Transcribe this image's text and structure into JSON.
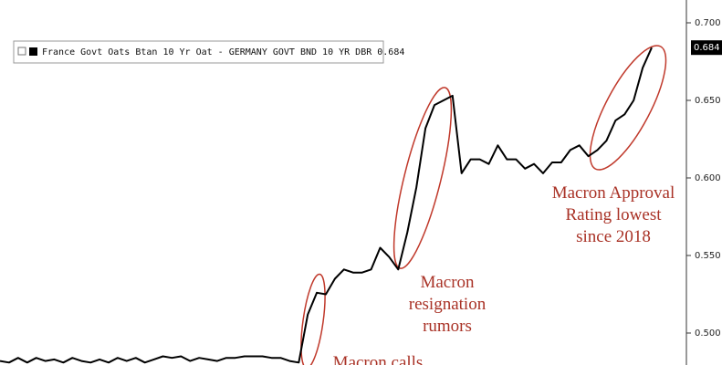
{
  "chart_data": {
    "type": "line",
    "series": [
      {
        "name": "France Govt Oats Btan 10 Yr Oat - GERMANY GOVT BND 10 YR DBR",
        "color": "#000000",
        "values": [
          0.482,
          0.481,
          0.484,
          0.481,
          0.484,
          0.482,
          0.483,
          0.481,
          0.484,
          0.482,
          0.481,
          0.483,
          0.481,
          0.484,
          0.482,
          0.484,
          0.481,
          0.483,
          0.485,
          0.484,
          0.485,
          0.482,
          0.484,
          0.483,
          0.482,
          0.484,
          0.484,
          0.485,
          0.485,
          0.485,
          0.484,
          0.484,
          0.482,
          0.481,
          0.512,
          0.526,
          0.525,
          0.535,
          0.541,
          0.539,
          0.539,
          0.541,
          0.555,
          0.549,
          0.541,
          0.565,
          0.594,
          0.632,
          0.647,
          0.65,
          0.653,
          0.603,
          0.612,
          0.612,
          0.609,
          0.621,
          0.612,
          0.612,
          0.606,
          0.609,
          0.603,
          0.61,
          0.61,
          0.618,
          0.621,
          0.614,
          0.618,
          0.624,
          0.637,
          0.641,
          0.65,
          0.671,
          0.684
        ]
      }
    ],
    "ylim": [
      0.4794,
      0.7147
    ],
    "yticks": [
      {
        "value": 0.5,
        "label": "0.500"
      },
      {
        "value": 0.55,
        "label": "0.550"
      },
      {
        "value": 0.6,
        "label": "0.600"
      },
      {
        "value": 0.65,
        "label": "0.650"
      },
      {
        "value": 0.7,
        "label": "0.700"
      }
    ],
    "grid": false,
    "annotations": [
      {
        "lines": [
          "Macron calls"
        ]
      },
      {
        "lines": [
          "Macron",
          "resignation",
          "rumors"
        ]
      },
      {
        "lines": [
          "Macron Approval",
          "Rating lowest",
          "since 2018"
        ]
      }
    ]
  }
}
